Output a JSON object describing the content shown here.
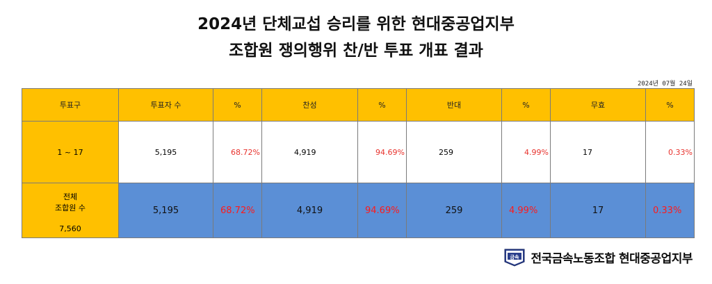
{
  "title": {
    "line1": "2024년 단체교섭 승리를 위한 현대중공업지부",
    "line2": "조합원 쟁의행위 찬/반 투표 개표 결과"
  },
  "date": "2024년 07월 24일",
  "table": {
    "headers": [
      "투표구",
      "투표자 수",
      "%",
      "찬성",
      "%",
      "반대",
      "%",
      "무효",
      "%"
    ],
    "row1": {
      "category": "1 ~ 17",
      "voters": "5,195",
      "voters_pct": "68.72%",
      "yes": "4,919",
      "yes_pct": "94.69%",
      "no": "259",
      "no_pct": "4.99%",
      "invalid": "17",
      "invalid_pct": "0.33%"
    },
    "row2": {
      "category_line1": "전체",
      "category_line2": "조합원 수",
      "category_total": "7,560",
      "voters": "5,195",
      "voters_pct": "68.72%",
      "yes": "4,919",
      "yes_pct": "94.69%",
      "no": "259",
      "no_pct": "4.99%",
      "invalid": "17",
      "invalid_pct": "0.33%"
    }
  },
  "footer": {
    "logo_text": "금속",
    "org_name": "전국금속노동조합  현대중공업지부"
  },
  "colors": {
    "header_bg": "#ffc000",
    "total_row_bg": "#5b8fd6",
    "pct_red": "#e8322d"
  }
}
